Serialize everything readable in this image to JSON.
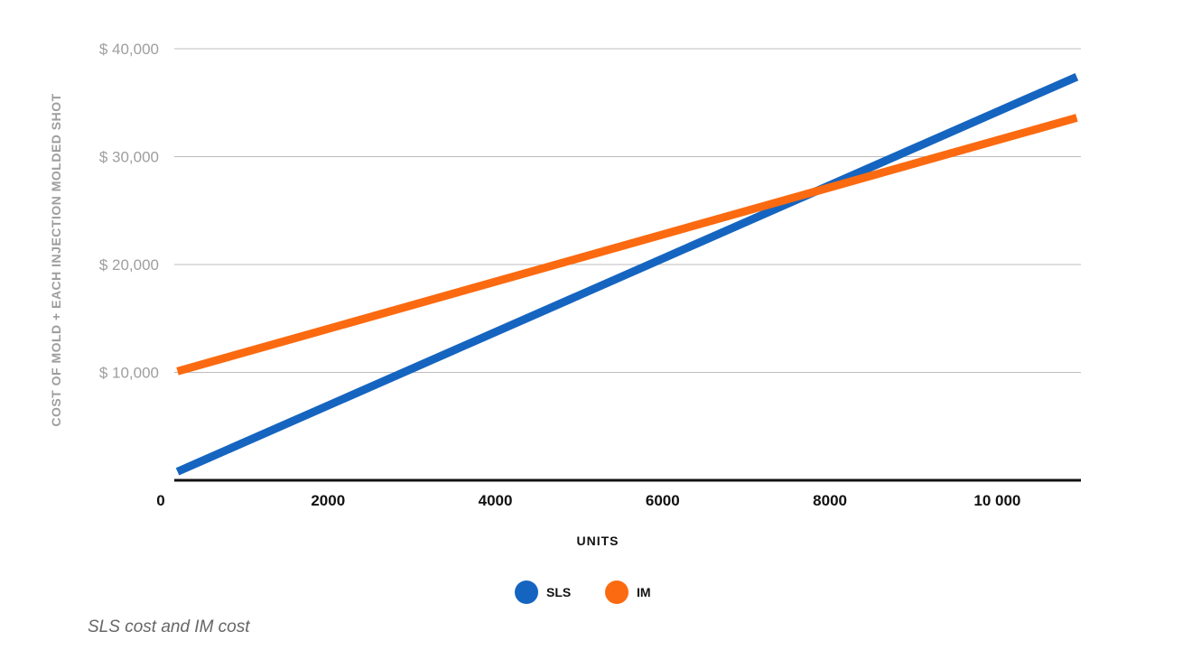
{
  "chart_data": {
    "type": "line",
    "xlabel": "UNITS",
    "ylabel": "COST OF MOLD + EACH INJECTION MOLDED SHOT",
    "xlim": [
      0,
      11000
    ],
    "ylim": [
      0,
      40000
    ],
    "x_ticks": [
      "0",
      "2000",
      "4000",
      "6000",
      "8000",
      "10 000"
    ],
    "x_tick_values": [
      0,
      2000,
      4000,
      6000,
      8000,
      10000
    ],
    "y_ticks": [
      "$ 10,000",
      "$ 20,000",
      "$ 30,000",
      "$ 40,000"
    ],
    "y_tick_values": [
      10000,
      20000,
      30000,
      40000
    ],
    "grid": true,
    "legend_position": "bottom",
    "series": [
      {
        "name": "SLS",
        "color": "#1565c0",
        "x": [
          200,
          10950
        ],
        "y": [
          800,
          37400
        ]
      },
      {
        "name": "IM",
        "color": "#fb6a10",
        "x": [
          200,
          10950
        ],
        "y": [
          10100,
          33600
        ]
      }
    ]
  },
  "caption": "SLS cost and IM cost"
}
